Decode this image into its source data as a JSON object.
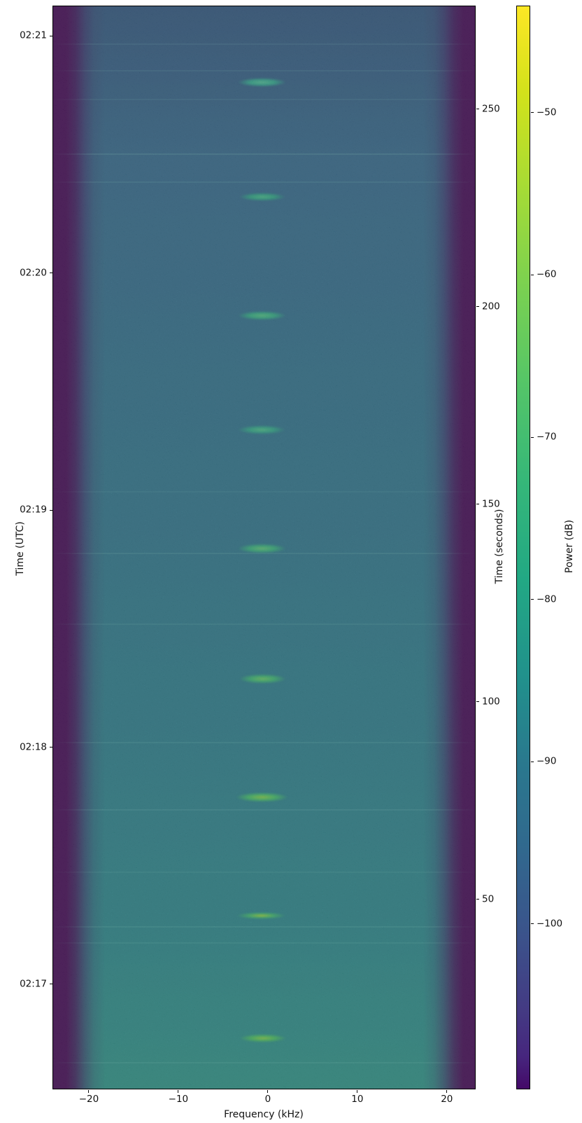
{
  "figure": {
    "xlabel": "Frequency (kHz)",
    "ylabel_left": "Time (UTC)",
    "ylabel_right": "Time (seconds)",
    "colorbar_label": "Power (dB)"
  },
  "chart_data": {
    "type": "heatmap",
    "subtype": "spectrogram-waterfall",
    "title": "",
    "xlabel": "Frequency (kHz)",
    "ylabel": "Time (UTC)",
    "ylabel_secondary": "Time (seconds)",
    "colorbar_label": "Power (dB)",
    "colormap": "viridis",
    "grid": false,
    "x_range_khz": [
      -24.06,
      23.22
    ],
    "x_ticks": [
      {
        "v": -20,
        "label": "−20"
      },
      {
        "v": -10,
        "label": "−10"
      },
      {
        "v": 0,
        "label": "0"
      },
      {
        "v": 10,
        "label": "10"
      },
      {
        "v": 20,
        "label": "20"
      }
    ],
    "y_right_range_s": [
      1.9,
      276.2
    ],
    "y_right_ticks": [
      {
        "v": 50,
        "label": "50"
      },
      {
        "v": 100,
        "label": "100"
      },
      {
        "v": 150,
        "label": "150"
      },
      {
        "v": 200,
        "label": "200"
      },
      {
        "v": 250,
        "label": "250"
      }
    ],
    "y_left_ticks_utc": [
      {
        "label": "02:21",
        "t_s": 268.5
      },
      {
        "label": "02:20",
        "t_s": 208.5
      },
      {
        "label": "02:19",
        "t_s": 148.5
      },
      {
        "label": "02:18",
        "t_s": 88.5
      },
      {
        "label": "02:17",
        "t_s": 28.5
      }
    ],
    "colorbar_range_db": [
      -110.2,
      -43.4
    ],
    "colorbar_ticks": [
      {
        "v": -50,
        "label": "−50"
      },
      {
        "v": -60,
        "label": "−60"
      },
      {
        "v": -70,
        "label": "−70"
      },
      {
        "v": -80,
        "label": "−80"
      },
      {
        "v": -90,
        "label": "−90"
      },
      {
        "v": -100,
        "label": "−100"
      }
    ],
    "colorbar_viridis_stops": [
      {
        "pos": 0.0,
        "color": "#fde725"
      },
      {
        "pos": 0.08,
        "color": "#d2e21b"
      },
      {
        "pos": 0.17,
        "color": "#a5db36"
      },
      {
        "pos": 0.26,
        "color": "#7ad151"
      },
      {
        "pos": 0.35,
        "color": "#54c568"
      },
      {
        "pos": 0.44,
        "color": "#35b779"
      },
      {
        "pos": 0.53,
        "color": "#22a884"
      },
      {
        "pos": 0.62,
        "color": "#21918c"
      },
      {
        "pos": 0.7,
        "color": "#2a788e"
      },
      {
        "pos": 0.78,
        "color": "#31688e"
      },
      {
        "pos": 0.86,
        "color": "#3b528b"
      },
      {
        "pos": 0.93,
        "color": "#443983"
      },
      {
        "pos": 0.97,
        "color": "#46267e"
      },
      {
        "pos": 1.0,
        "color": "#440a68"
      }
    ],
    "background_colors": {
      "noise_floor_top_db": -88,
      "noise_floor_bottom_db": -82,
      "top": "#33628d",
      "bottom": "#2b9589",
      "band_edge": "#440154"
    },
    "bursts": [
      {
        "t_s": 257,
        "f_lo_khz": -3.4,
        "f_hi_khz": 2.0,
        "dur_s": 2.3,
        "color": "#2fae92",
        "peak": "#52c29b"
      },
      {
        "t_s": 228,
        "f_lo_khz": -3.3,
        "f_hi_khz": 1.9,
        "dur_s": 2.2,
        "color": "#2ba988",
        "peak": "#49c18f"
      },
      {
        "t_s": 198,
        "f_lo_khz": -3.4,
        "f_hi_khz": 2.0,
        "dur_s": 2.3,
        "color": "#2fb287",
        "peak": "#55c787"
      },
      {
        "t_s": 169,
        "f_lo_khz": -3.4,
        "f_hi_khz": 1.9,
        "dur_s": 2.2,
        "color": "#2dab8b",
        "peak": "#4fc48e"
      },
      {
        "t_s": 139,
        "f_lo_khz": -3.4,
        "f_hi_khz": 2.0,
        "dur_s": 2.4,
        "color": "#33b67e",
        "peak": "#63cb7a"
      },
      {
        "t_s": 106,
        "f_lo_khz": -3.3,
        "f_hi_khz": 2.0,
        "dur_s": 2.4,
        "color": "#38bb74",
        "peak": "#6fd065"
      },
      {
        "t_s": 76,
        "f_lo_khz": -3.7,
        "f_hi_khz": 2.2,
        "dur_s": 2.6,
        "color": "#41c36a",
        "peak": "#8ed645"
      },
      {
        "t_s": 46,
        "f_lo_khz": -3.5,
        "f_hi_khz": 1.9,
        "dur_s": 1.8,
        "color": "#3dbd6f",
        "peak": "#a8db34"
      },
      {
        "t_s": 15,
        "f_lo_khz": -3.2,
        "f_hi_khz": 2.0,
        "dur_s": 2.2,
        "color": "#47c361",
        "peak": "#8ed645"
      }
    ],
    "interference_lines": [
      {
        "t_s": 266.6,
        "alpha": 0.1
      },
      {
        "t_s": 259.9,
        "alpha": 0.1
      },
      {
        "t_s": 252.6,
        "alpha": 0.09
      },
      {
        "t_s": 238.8,
        "alpha": 0.16
      },
      {
        "t_s": 231.7,
        "alpha": 0.12
      },
      {
        "t_s": 153.4,
        "alpha": 0.08
      },
      {
        "t_s": 137.8,
        "alpha": 0.12
      },
      {
        "t_s": 119.9,
        "alpha": 0.1
      },
      {
        "t_s": 89.9,
        "alpha": 0.12
      },
      {
        "t_s": 72.8,
        "alpha": 0.14
      },
      {
        "t_s": 57.1,
        "alpha": 0.09
      },
      {
        "t_s": 43.3,
        "alpha": 0.13
      },
      {
        "t_s": 39.2,
        "alpha": 0.11
      },
      {
        "t_s": 8.8,
        "alpha": 0.12
      }
    ]
  }
}
